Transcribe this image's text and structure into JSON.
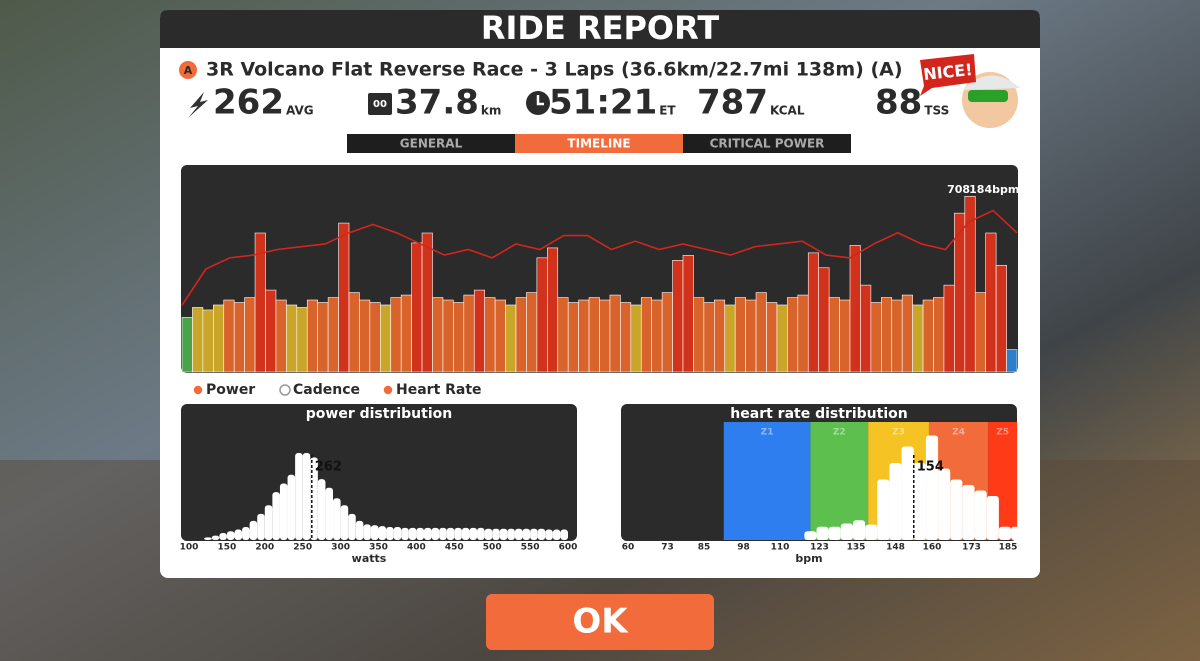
{
  "header": {
    "title": "RIDE REPORT"
  },
  "route": {
    "badge": "A",
    "name": "3R Volcano Flat Reverse Race - 3 Laps (36.6km/22.7mi 138m) (A)"
  },
  "reaction": "NICE!",
  "stats": [
    {
      "value": "262",
      "unit": "AVG"
    },
    {
      "value": "37.8",
      "unit": "km",
      "icon_text": "00"
    },
    {
      "value": "51:21",
      "unit": "ET"
    },
    {
      "value": "787",
      "unit": "KCAL"
    },
    {
      "value": "88",
      "unit": "TSS"
    }
  ],
  "tabs": {
    "items": [
      "GENERAL",
      "TIMELINE",
      "CRITICAL POWER"
    ],
    "active": 1
  },
  "timeline": {
    "type": "bar-line",
    "legend": [
      "Power",
      "Cadence",
      "Heart Rate"
    ],
    "peak_labels": [
      "708",
      "184bpm"
    ],
    "power": {
      "values": [
        220,
        260,
        250,
        270,
        290,
        280,
        300,
        560,
        330,
        290,
        270,
        260,
        290,
        280,
        300,
        600,
        320,
        290,
        280,
        270,
        300,
        310,
        520,
        560,
        300,
        290,
        280,
        310,
        330,
        300,
        290,
        270,
        300,
        320,
        460,
        500,
        300,
        280,
        290,
        300,
        290,
        310,
        280,
        270,
        300,
        290,
        320,
        450,
        470,
        300,
        280,
        290,
        270,
        300,
        290,
        320,
        280,
        270,
        300,
        310,
        480,
        420,
        300,
        290,
        510,
        350,
        280,
        300,
        290,
        310,
        270,
        290,
        300,
        350,
        640,
        708,
        320,
        560,
        430,
        90
      ],
      "ylim": [
        0,
        830
      ],
      "zone_limits": [
        210,
        250,
        280,
        330
      ],
      "zone_colors": [
        "#2f7ec8",
        "#4aa34a",
        "#c9a62a",
        "#d8642c",
        "#d0321c"
      ]
    },
    "heart_rate": {
      "values": [
        150,
        163,
        167,
        168,
        170,
        171,
        172,
        176,
        179,
        176,
        172,
        168,
        170,
        167,
        172,
        170,
        175,
        175,
        170,
        173,
        170,
        172,
        170,
        168,
        171,
        172,
        173,
        168,
        167,
        172,
        176,
        172,
        170,
        180,
        184,
        176
      ],
      "ylim": [
        126,
        200
      ],
      "color": "#d4251d"
    }
  },
  "power_distribution": {
    "type": "histogram",
    "title": "power distribution",
    "xlabel": "watts",
    "xlim": [
      100,
      600
    ],
    "xticks": [
      100,
      150,
      200,
      250,
      300,
      350,
      400,
      450,
      500,
      550,
      600
    ],
    "bins": [
      100,
      110,
      120,
      130,
      140,
      150,
      160,
      170,
      180,
      190,
      200,
      210,
      220,
      230,
      240,
      250,
      260,
      270,
      280,
      290,
      300,
      310,
      320,
      330,
      340,
      350,
      360,
      370,
      380,
      390,
      400,
      410,
      420,
      430,
      440,
      450,
      460,
      470,
      480,
      490,
      500,
      510,
      520,
      530,
      540,
      550,
      560,
      570,
      580,
      590,
      600
    ],
    "counts": [
      0,
      0,
      3,
      5,
      8,
      10,
      12,
      15,
      22,
      30,
      40,
      55,
      65,
      75,
      100,
      100,
      95,
      70,
      60,
      48,
      40,
      30,
      22,
      18,
      17,
      16,
      15,
      15,
      14,
      14,
      14,
      14,
      14,
      14,
      14,
      14,
      14,
      14,
      14,
      13,
      13,
      13,
      13,
      13,
      13,
      13,
      13,
      12,
      12,
      12
    ],
    "ylim": [
      0,
      100
    ],
    "average": 262
  },
  "hr_distribution": {
    "type": "histogram",
    "title": "heart rate distribution",
    "xlabel": "bpm",
    "xlim": [
      60,
      185
    ],
    "xticks": [
      60,
      73,
      85,
      98,
      110,
      123,
      135,
      148,
      160,
      173,
      185
    ],
    "zones": [
      {
        "label": "Z1",
        "from": 91.5,
        "to": 120,
        "color": "#2f7ef0"
      },
      {
        "label": "Z2",
        "from": 120,
        "to": 139,
        "color": "#5cbf4e"
      },
      {
        "label": "Z3",
        "from": 139,
        "to": 159,
        "color": "#f6c325"
      },
      {
        "label": "Z4",
        "from": 159,
        "to": 178.5,
        "color": "#f26b3a"
      },
      {
        "label": "Z5",
        "from": 178.5,
        "to": 188,
        "color": "#ff3a17"
      }
    ],
    "bins": [
      110,
      114,
      118,
      122,
      126,
      130,
      134,
      138,
      142,
      146,
      150,
      154,
      158,
      162,
      166,
      170,
      174,
      178,
      182,
      186,
      190
    ],
    "counts": [
      0,
      0,
      8,
      12,
      12,
      15,
      18,
      14,
      55,
      70,
      85,
      70,
      95,
      65,
      55,
      50,
      45,
      40,
      12,
      12
    ],
    "ylim": [
      0,
      100
    ],
    "average": 154
  },
  "button": {
    "label": "OK"
  }
}
